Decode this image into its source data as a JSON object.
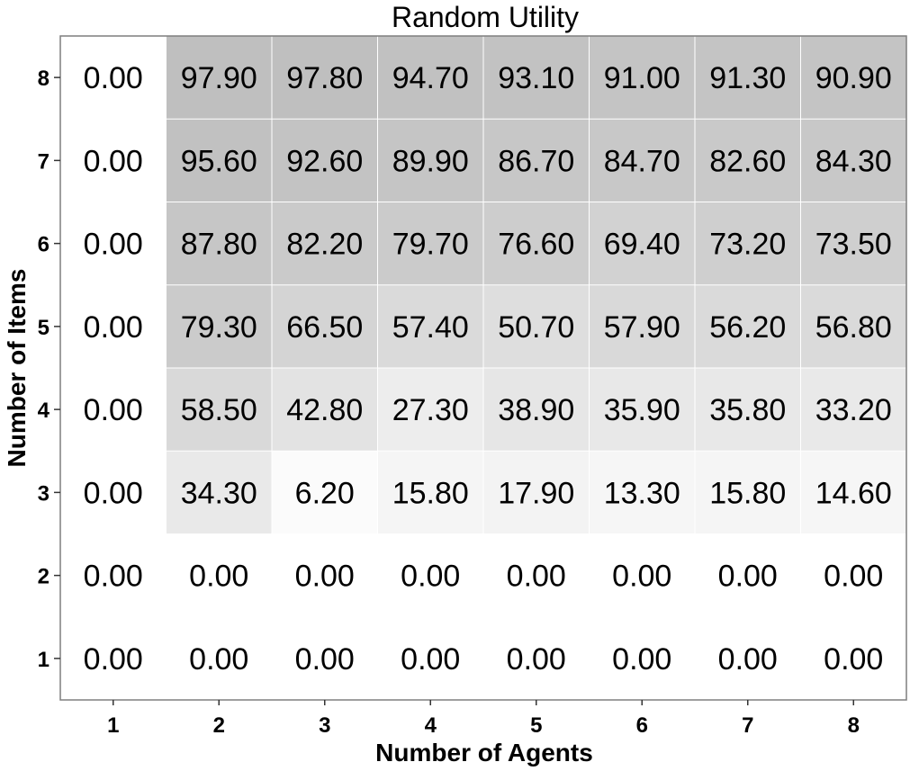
{
  "chart_data": {
    "type": "heatmap",
    "title": "Random Utility",
    "xlabel": "Number of Agents",
    "ylabel": "Number of Items",
    "x": [
      1,
      2,
      3,
      4,
      5,
      6,
      7,
      8
    ],
    "y": [
      1,
      2,
      3,
      4,
      5,
      6,
      7,
      8
    ],
    "x_tick_labels": [
      "1",
      "2",
      "3",
      "4",
      "5",
      "6",
      "7",
      "8"
    ],
    "y_tick_labels": [
      "1",
      "2",
      "3",
      "4",
      "5",
      "6",
      "7",
      "8"
    ],
    "values_by_items": [
      {
        "items": 8,
        "values": [
          0.0,
          97.9,
          97.8,
          94.7,
          93.1,
          91.0,
          91.3,
          90.9
        ]
      },
      {
        "items": 7,
        "values": [
          0.0,
          95.6,
          92.6,
          89.9,
          86.7,
          84.7,
          82.6,
          84.3
        ]
      },
      {
        "items": 6,
        "values": [
          0.0,
          87.8,
          82.2,
          79.7,
          76.6,
          69.4,
          73.2,
          73.5
        ]
      },
      {
        "items": 5,
        "values": [
          0.0,
          79.3,
          66.5,
          57.4,
          50.7,
          57.9,
          56.2,
          56.8
        ]
      },
      {
        "items": 4,
        "values": [
          0.0,
          58.5,
          42.8,
          27.3,
          38.9,
          35.9,
          35.8,
          33.2
        ]
      },
      {
        "items": 3,
        "values": [
          0.0,
          34.3,
          6.2,
          15.8,
          17.9,
          13.3,
          15.8,
          14.6
        ]
      },
      {
        "items": 2,
        "values": [
          0.0,
          0.0,
          0.0,
          0.0,
          0.0,
          0.0,
          0.0,
          0.0
        ]
      },
      {
        "items": 1,
        "values": [
          0.0,
          0.0,
          0.0,
          0.0,
          0.0,
          0.0,
          0.0,
          0.0
        ]
      }
    ],
    "value_format": "2 decimals",
    "color_scale": {
      "low": "#ffffff",
      "high": "#bebebe"
    },
    "grid": true,
    "grid_color": "#ffffff",
    "border_color": "#7f7f7f"
  }
}
